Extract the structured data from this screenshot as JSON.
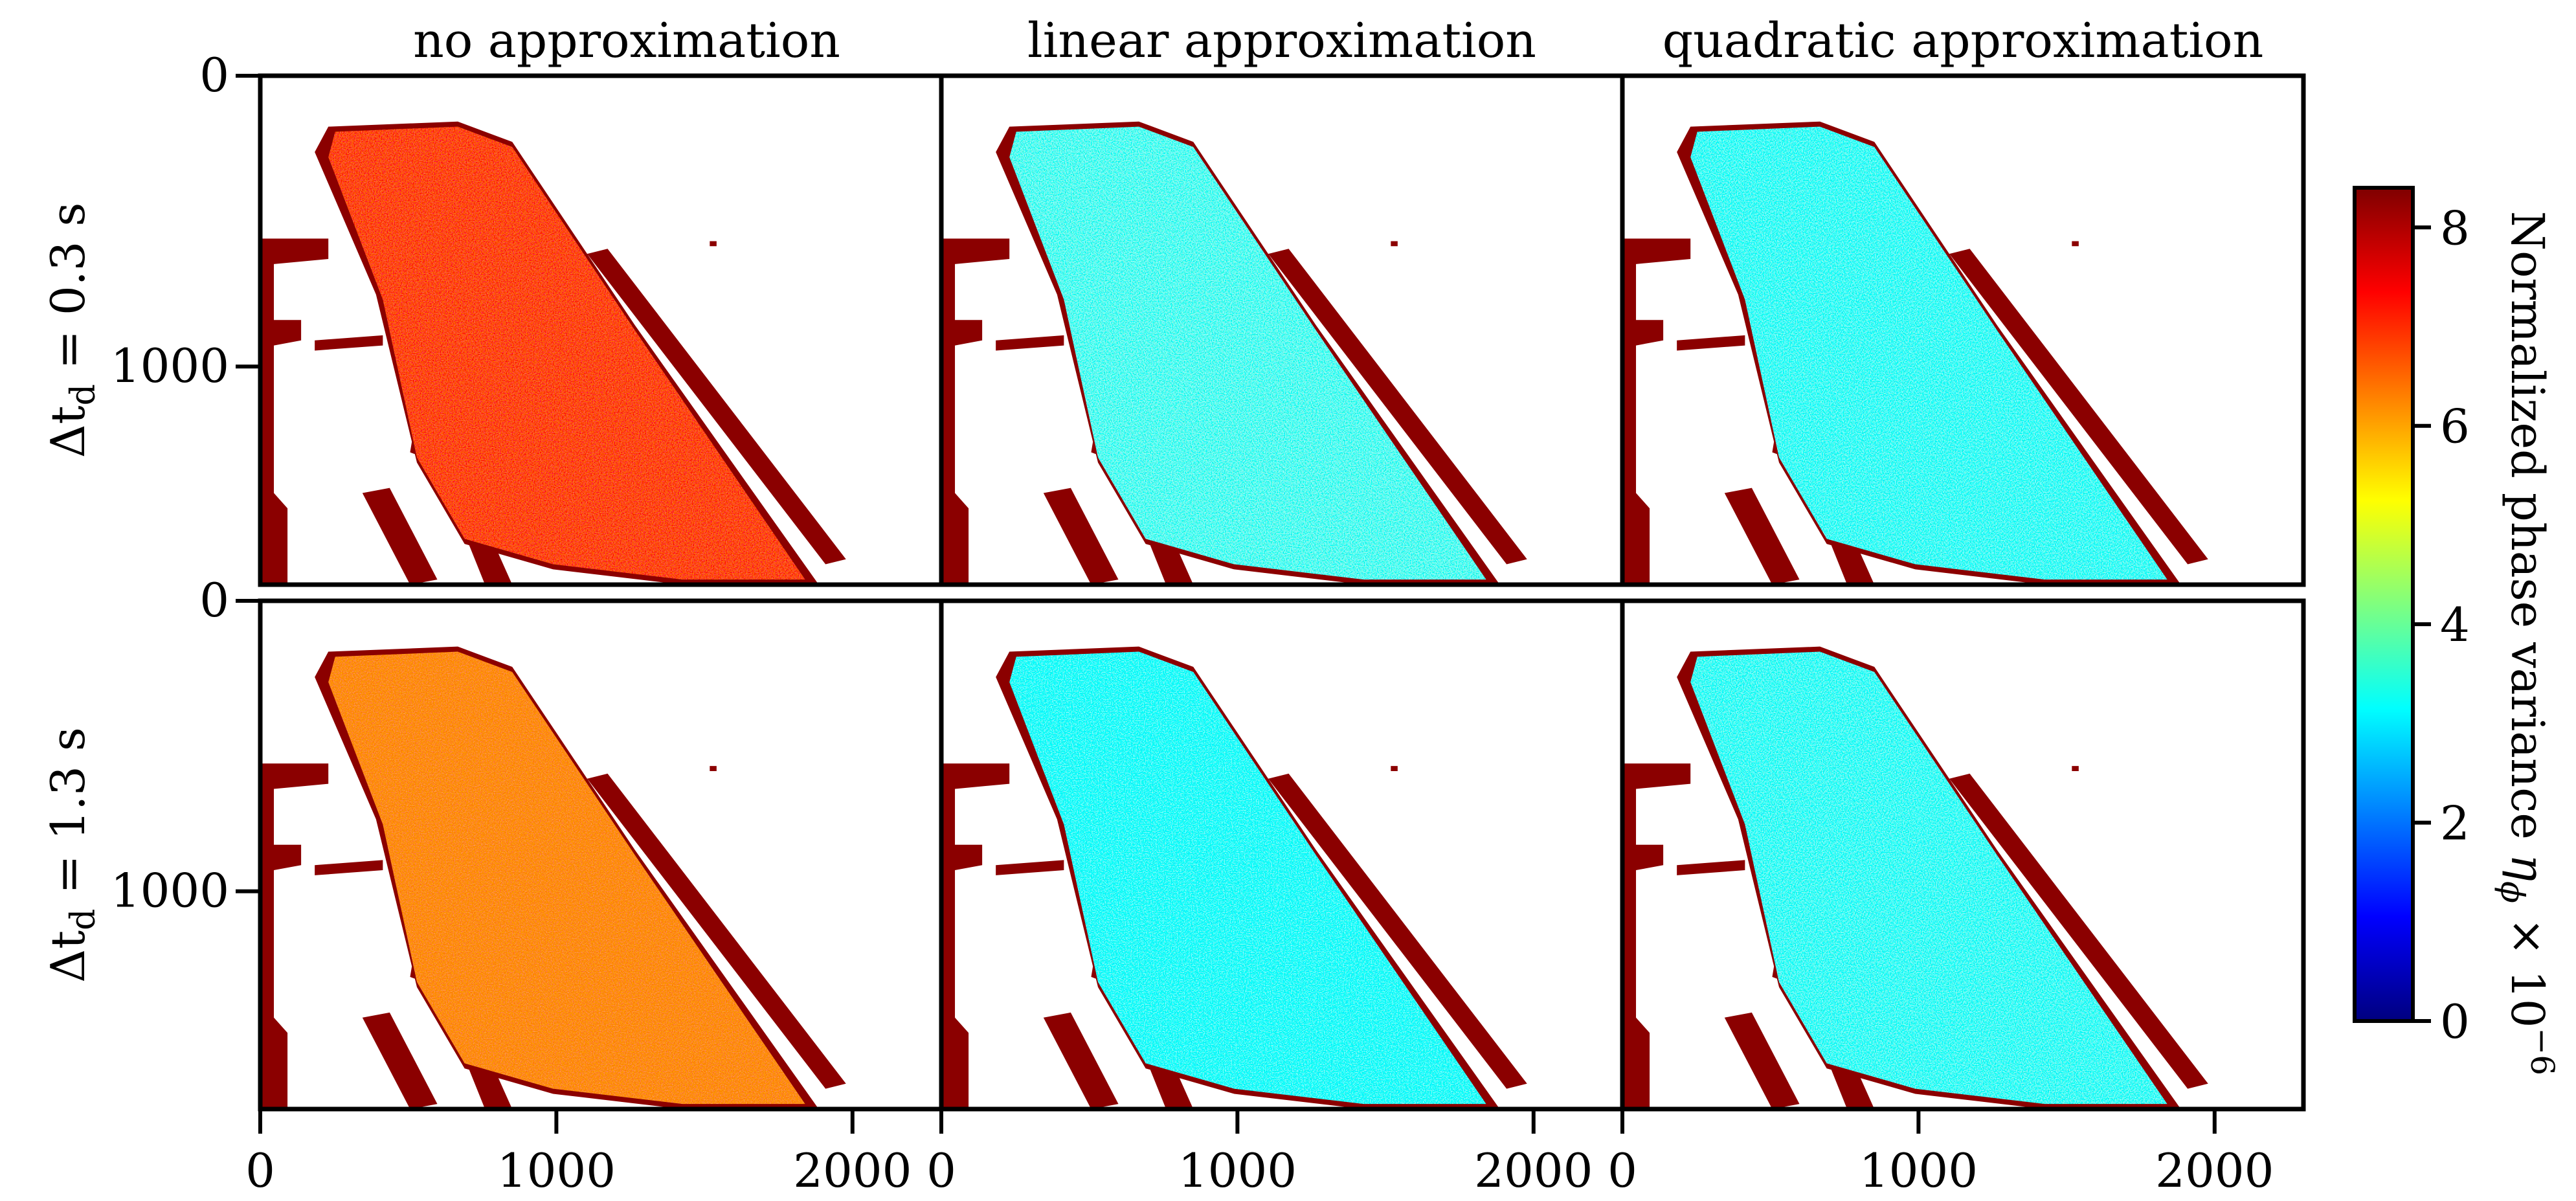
{
  "chart_data": {
    "type": "heatmap",
    "columns": [
      "no approximation",
      "linear approximation",
      "quadratic approximation"
    ],
    "rows": [
      {
        "label_main": "Δt",
        "label_sub": "d",
        "label_rest": " = 0.3 s"
      },
      {
        "label_main": "Δt",
        "label_sub": "d",
        "label_rest": " = 1.3 s"
      }
    ],
    "x_ticks": [
      0,
      1000,
      2000
    ],
    "y_ticks": [
      0,
      1000
    ],
    "x_range": [
      0,
      2300
    ],
    "y_range": [
      0,
      1750
    ],
    "colorbar": {
      "label_main": "Normalized phase variance ",
      "label_symbol": "η",
      "label_sub": "ϕ",
      "label_rest": " × 10",
      "label_exp": "−6",
      "ticks": [
        0,
        2,
        4,
        6,
        8
      ],
      "range": [
        0,
        8.4
      ],
      "colormap": "jet"
    },
    "panel_mean_variance": [
      [
        7.2,
        3.4,
        3.3
      ],
      [
        6.8,
        3.2,
        3.3
      ]
    ],
    "mask_color": "#8b0000"
  }
}
